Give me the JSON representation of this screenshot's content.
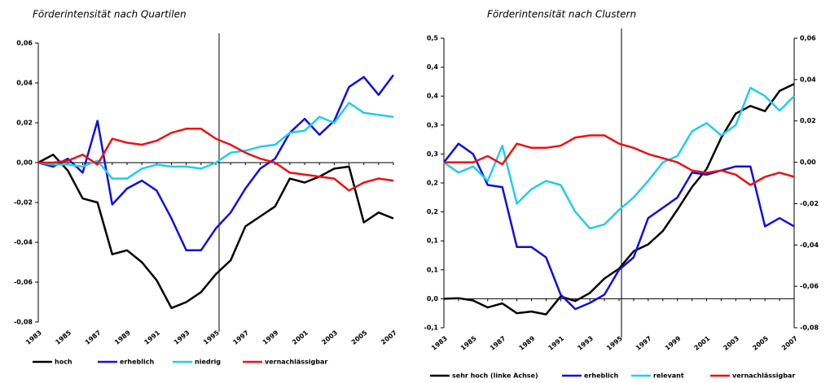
{
  "chart_data": [
    {
      "type": "line",
      "title": "Förderintensität nach Quartilen",
      "categories": [
        "1983",
        null,
        "1985",
        null,
        "1987",
        null,
        "1989",
        null,
        "1991",
        null,
        "1993",
        null,
        "1995",
        null,
        "1997",
        null,
        "1999",
        null,
        "2001",
        null,
        "2003",
        null,
        "2005",
        null,
        "2007"
      ],
      "ylim": [
        -0.08,
        0.06
      ],
      "yticks": [
        {
          "value": -0.08,
          "label": "-0,08"
        },
        {
          "value": -0.06,
          "label": "-0,06"
        },
        {
          "value": -0.04,
          "label": "-0,04"
        },
        {
          "value": -0.02,
          "label": "-0,02"
        },
        {
          "value": 0,
          "label": "0,00"
        },
        {
          "value": 0.02,
          "label": "0,02"
        },
        {
          "value": 0.04,
          "label": "0,04"
        },
        {
          "value": 0.06,
          "label": "0,06"
        }
      ],
      "series": [
        {
          "name": "hoch",
          "color": "#000000",
          "values": [
            0,
            0.004,
            -0.004,
            -0.018,
            -0.02,
            -0.046,
            -0.044,
            -0.05,
            -0.059,
            -0.073,
            -0.07,
            -0.065,
            -0.056,
            -0.049,
            -0.032,
            -0.027,
            -0.022,
            -0.008,
            -0.01,
            -0.007,
            -0.003,
            -0.002,
            -0.03,
            -0.025,
            -0.028
          ]
        },
        {
          "name": "erheblich",
          "color": "#1010e0",
          "values": [
            0,
            -0.002,
            0.002,
            -0.005,
            0.021,
            -0.021,
            -0.013,
            -0.009,
            -0.014,
            -0.028,
            -0.044,
            -0.044,
            -0.033,
            -0.025,
            -0.013,
            -0.003,
            0.002,
            0.015,
            0.022,
            0.014,
            0.021,
            0.038,
            0.043,
            0.034,
            0.044
          ]
        },
        {
          "name": "niedrig",
          "color": "#22ccee",
          "values": [
            0,
            -0.001,
            -0.001,
            -0.002,
            0.001,
            -0.008,
            -0.008,
            -0.003,
            -0.001,
            -0.002,
            -0.002,
            -0.003,
            0,
            0.005,
            0.006,
            0.008,
            0.009,
            0.015,
            0.016,
            0.023,
            0.02,
            0.03,
            0.025,
            0.024,
            0.023
          ]
        },
        {
          "name": "vernachlässigbar",
          "color": "#ee1111",
          "values": [
            0,
            0,
            0.001,
            0.004,
            -0.001,
            0.012,
            0.01,
            0.009,
            0.011,
            0.015,
            0.017,
            0.017,
            0.012,
            0.009,
            0.005,
            0.002,
            0,
            -0.005,
            -0.006,
            -0.007,
            -0.008,
            -0.014,
            -0.01,
            -0.008,
            -0.009
          ]
        }
      ]
    },
    {
      "type": "line",
      "title": "Förderintensität nach Clustern",
      "categories": [
        "1983",
        null,
        "1985",
        null,
        "1987",
        null,
        "1989",
        null,
        "1991",
        null,
        "1993",
        null,
        "1995",
        null,
        "1997",
        null,
        "1999",
        null,
        "2001",
        null,
        "2003",
        null,
        "2005",
        null,
        "2007"
      ],
      "ylim": [
        -0.05,
        0.45
      ],
      "yticks": [
        {
          "value": -0.05,
          "label": "-0,1"
        },
        {
          "value": 0,
          "label": "0,0"
        },
        {
          "value": 0.05,
          "label": "0,1"
        },
        {
          "value": 0.1,
          "label": "0,1"
        },
        {
          "value": 0.15,
          "label": "0,2"
        },
        {
          "value": 0.2,
          "label": "0,2"
        },
        {
          "value": 0.25,
          "label": "0,3"
        },
        {
          "value": 0.3,
          "label": "0,3"
        },
        {
          "value": 0.35,
          "label": "0,4"
        },
        {
          "value": 0.4,
          "label": "0,4"
        },
        {
          "value": 0.45,
          "label": "0,5"
        }
      ],
      "y2lim": [
        -0.08,
        0.06
      ],
      "y2ticks": [
        {
          "value": -0.08,
          "label": "-0,08"
        },
        {
          "value": -0.06,
          "label": "-0,06"
        },
        {
          "value": -0.04,
          "label": "-0,04"
        },
        {
          "value": -0.02,
          "label": "-0,02"
        },
        {
          "value": 0,
          "label": "0,00"
        },
        {
          "value": 0.02,
          "label": "0,02"
        },
        {
          "value": 0.04,
          "label": "0,04"
        },
        {
          "value": 0.06,
          "label": "0,06"
        }
      ],
      "series": [
        {
          "name": "sehr hoch (linke Achse)",
          "color": "#000000",
          "values": [
            0,
            0.001,
            -0.003,
            -0.015,
            -0.008,
            -0.025,
            -0.022,
            -0.027,
            0.004,
            -0.004,
            0.01,
            0.035,
            0.052,
            0.082,
            0.094,
            0.117,
            0.154,
            0.193,
            0.224,
            0.278,
            0.32,
            0.333,
            0.324,
            0.359,
            0.371
          ]
        },
        {
          "name": "erheblich",
          "color": "#1010e0",
          "axis": "y2",
          "values": [
            0,
            0.009,
            0.004,
            -0.011,
            -0.012,
            -0.041,
            -0.041,
            -0.046,
            -0.064,
            -0.071,
            -0.068,
            -0.064,
            -0.052,
            -0.046,
            -0.027,
            -0.022,
            -0.017,
            -0.005,
            -0.006,
            -0.004,
            -0.002,
            -0.002,
            -0.031,
            -0.027,
            -0.031
          ]
        },
        {
          "name": "relevant",
          "color": "#22ccee",
          "axis": "y2",
          "values": [
            0,
            -0.005,
            -0.002,
            -0.009,
            0.008,
            -0.02,
            -0.013,
            -0.009,
            -0.011,
            -0.024,
            -0.032,
            -0.03,
            -0.023,
            -0.017,
            -0.009,
            0,
            0.003,
            0.015,
            0.019,
            0.013,
            0.018,
            0.036,
            0.032,
            0.025,
            0.032
          ]
        },
        {
          "name": "vernachlässigbar",
          "color": "#ee1111",
          "axis": "y2",
          "values": [
            0,
            0,
            0,
            0.003,
            -0.001,
            0.009,
            0.007,
            0.007,
            0.008,
            0.012,
            0.013,
            0.013,
            0.009,
            0.007,
            0.004,
            0.002,
            0,
            -0.004,
            -0.005,
            -0.004,
            -0.006,
            -0.011,
            -0.007,
            -0.005,
            -0.007
          ]
        }
      ]
    }
  ]
}
